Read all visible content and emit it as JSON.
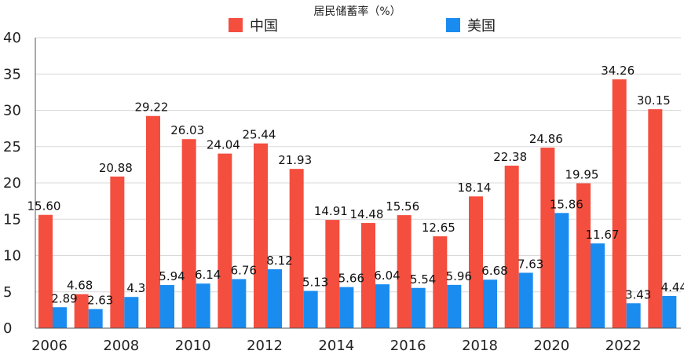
{
  "chart_data": {
    "type": "bar",
    "title": "居民储蓄率（%）",
    "xlabel": "",
    "ylabel": "",
    "ylim": [
      0,
      40
    ],
    "yticks": [
      0,
      5,
      10,
      15,
      20,
      25,
      30,
      35,
      40
    ],
    "grid": true,
    "legend": "top-center",
    "categories": [
      "2006",
      "2007",
      "2008",
      "2009",
      "2010",
      "2011",
      "2012",
      "2013",
      "2014",
      "2015",
      "2016",
      "2017",
      "2018",
      "2019",
      "2020",
      "2021",
      "2022",
      "2023"
    ],
    "xtick_labels": [
      "2006",
      "",
      "2008",
      "",
      "2010",
      "",
      "2012",
      "",
      "2014",
      "",
      "2016",
      "",
      "2018",
      "",
      "2020",
      "",
      "2022",
      ""
    ],
    "series": [
      {
        "name": "中国",
        "color": "#f44e3f",
        "values": [
          15.6,
          4.68,
          20.88,
          29.22,
          26.03,
          24.04,
          25.44,
          21.93,
          14.91,
          14.48,
          15.56,
          12.65,
          18.14,
          22.38,
          24.86,
          19.95,
          34.26,
          30.15
        ],
        "labels": [
          "15.60",
          "4.68",
          "20.88",
          "29.22",
          "26.03",
          "24.04",
          "25.44",
          "21.93",
          "14.91",
          "14.48",
          "15.56",
          "12.65",
          "18.14",
          "22.38",
          "24.86",
          "19.95",
          "34.26",
          "30.15"
        ]
      },
      {
        "name": "美国",
        "color": "#1a8cf0",
        "values": [
          2.89,
          2.63,
          4.3,
          5.94,
          6.14,
          6.76,
          8.12,
          5.13,
          5.66,
          6.04,
          5.54,
          5.96,
          6.68,
          7.63,
          15.86,
          11.67,
          3.43,
          4.44
        ],
        "labels": [
          "2.89",
          "2.63",
          "4.3",
          "5.94",
          "6.14",
          "6.76",
          "8.12",
          "5.13",
          "5.66",
          "6.04",
          "5.54",
          "5.96",
          "6.68",
          "7.63",
          "15.86",
          "11.67",
          "3.43",
          "4.44"
        ]
      }
    ]
  },
  "colors": {
    "grid": "#d9d9d9",
    "axis": "#555555",
    "text": "#222222"
  }
}
